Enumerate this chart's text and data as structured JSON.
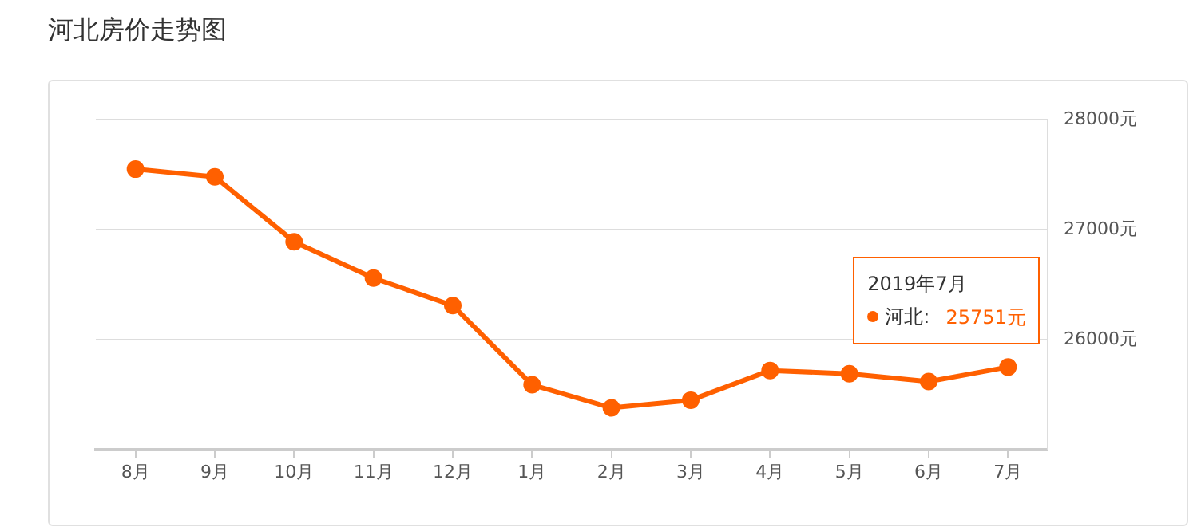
{
  "chart_data": {
    "type": "line",
    "title": "河北房价走势图",
    "categories": [
      "8月",
      "9月",
      "10月",
      "11月",
      "12月",
      "1月",
      "2月",
      "3月",
      "4月",
      "5月",
      "6月",
      "7月"
    ],
    "series": [
      {
        "name": "河北:",
        "color": "#ff6000",
        "values": [
          27550,
          27480,
          26890,
          26560,
          26310,
          25590,
          25380,
          25450,
          25720,
          25690,
          25620,
          25751
        ],
        "value_labels": [
          null,
          null,
          null,
          null,
          null,
          null,
          null,
          null,
          null,
          null,
          null,
          "25751元"
        ]
      }
    ],
    "ylim": [
      25000,
      28000
    ],
    "yticks": [
      {
        "value": 25000,
        "label": null
      },
      {
        "value": 26000,
        "label": "26000元"
      },
      {
        "value": 27000,
        "label": "27000元"
      },
      {
        "value": 28000,
        "label": "28000元"
      }
    ],
    "annotations": [
      "2019年7月"
    ],
    "grid": "y",
    "marker": "circle",
    "line_style": "solid"
  }
}
